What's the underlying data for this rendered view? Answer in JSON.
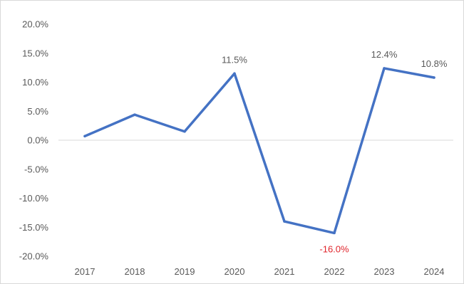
{
  "chart_data": {
    "type": "line",
    "title": "",
    "xlabel": "",
    "ylabel": "",
    "categories": [
      "2017",
      "2018",
      "2019",
      "2020",
      "2021",
      "2022",
      "2023",
      "2024"
    ],
    "series": [
      {
        "values": [
          0.7,
          4.4,
          1.5,
          11.5,
          -14.0,
          -16.0,
          12.4,
          10.8
        ],
        "color": "#4472c4"
      }
    ],
    "ylim": [
      -20,
      20
    ],
    "y_ticks": [
      20,
      15,
      10,
      5,
      0,
      -5,
      -10,
      -15,
      -20
    ],
    "y_tick_labels": [
      "20.0%",
      "15.0%",
      "10.0%",
      "5.0%",
      "0.0%",
      "-5.0%",
      "-10.0%",
      "-15.0%",
      "-20.0%"
    ],
    "data_labels": [
      {
        "index": 3,
        "text": "11.5%",
        "color": "#595959"
      },
      {
        "index": 5,
        "text": "-16.0%",
        "color": "#e0242b"
      },
      {
        "index": 6,
        "text": "12.4%",
        "color": "#595959"
      },
      {
        "index": 7,
        "text": "10.8%",
        "color": "#595959"
      }
    ],
    "zero_line": true,
    "grid": false,
    "legend": "none"
  }
}
